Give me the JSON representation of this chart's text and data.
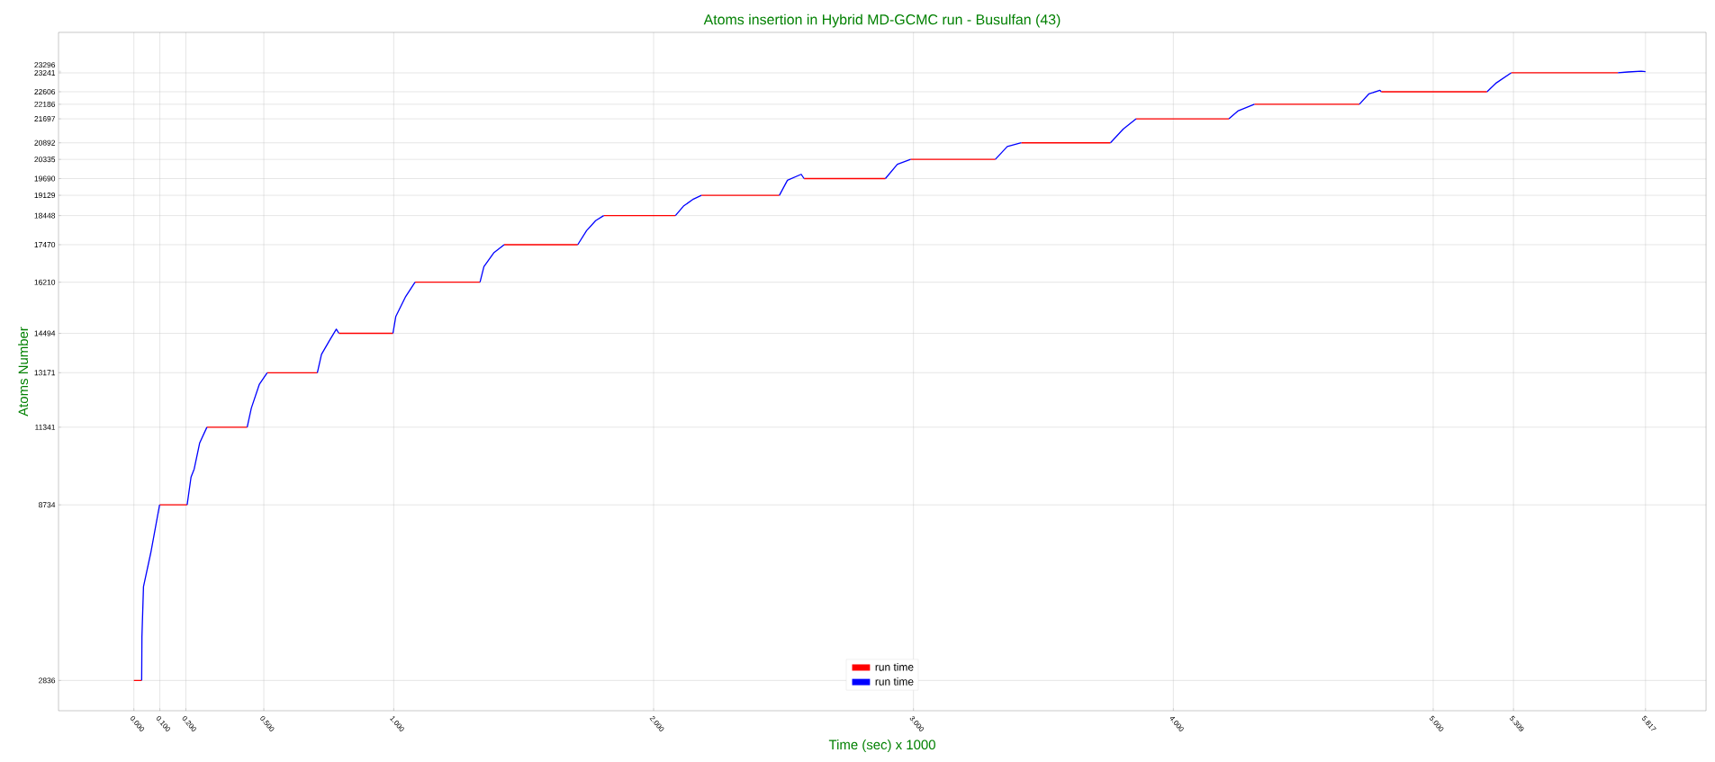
{
  "chart_data": {
    "type": "line",
    "title": "Atoms insertion in Hybrid MD-GCMC run - Busulfan (43)",
    "xlabel": "Time (sec) x 1000",
    "ylabel": "Atoms Number",
    "xlim": [
      -0.29,
      6.05
    ],
    "ylim": [
      1820,
      24600
    ],
    "xticks": [
      {
        "value": 0,
        "label": "0.000"
      },
      {
        "value": 0.1,
        "label": "0.100"
      },
      {
        "value": 0.2,
        "label": "0.200"
      },
      {
        "value": 0.5,
        "label": "0.500"
      },
      {
        "value": 1,
        "label": "1.000"
      },
      {
        "value": 2,
        "label": "2.000"
      },
      {
        "value": 3,
        "label": "3.000"
      },
      {
        "value": 4,
        "label": "4.000"
      },
      {
        "value": 5,
        "label": "5.000"
      },
      {
        "value": 5.309,
        "label": "5.309"
      },
      {
        "value": 5.817,
        "label": "5.817"
      }
    ],
    "yticks": [
      2836,
      8734,
      11341,
      13171,
      14494,
      16210,
      17470,
      18448,
      19129,
      19690,
      20335,
      20892,
      21697,
      22186,
      22606,
      23241,
      23296
    ],
    "grid": true,
    "legend": "bottom",
    "line_style": "solid",
    "series": [
      {
        "name": "run time",
        "color": "#ff0000",
        "x": [
          0,
          0.03,
          null,
          0.099,
          0.205,
          null,
          0.281,
          0.436,
          null,
          0.513,
          0.706,
          null,
          0.789,
          0.997,
          null,
          1.082,
          1.332,
          null,
          1.425,
          1.708,
          null,
          1.808,
          2.084,
          null,
          2.184,
          2.484,
          null,
          2.579,
          2.892,
          null,
          2.989,
          3.315,
          null,
          3.415,
          3.758,
          null,
          3.857,
          4.214,
          null,
          4.312,
          4.716,
          null,
          4.8,
          5.207,
          null,
          5.3,
          5.711
        ],
        "values": [
          2836,
          2836,
          null,
          8734,
          8734,
          null,
          11341,
          11341,
          null,
          13171,
          13171,
          null,
          14494,
          14494,
          null,
          16210,
          16210,
          null,
          17470,
          17470,
          null,
          18448,
          18448,
          null,
          19129,
          19129,
          null,
          19690,
          19690,
          null,
          20335,
          20335,
          null,
          20892,
          20892,
          null,
          21697,
          21697,
          null,
          22186,
          22186,
          null,
          22606,
          22606,
          null,
          23241,
          23241
        ]
      },
      {
        "name": "run time",
        "color": "#0000ff",
        "x": [
          0.03,
          0.031,
          0.037,
          0.065,
          0.099,
          null,
          0.205,
          0.22,
          0.232,
          0.253,
          0.281,
          null,
          0.436,
          0.452,
          0.483,
          0.513,
          null,
          0.706,
          0.722,
          0.753,
          0.779,
          0.789,
          null,
          0.997,
          1.008,
          1.046,
          1.082,
          null,
          1.332,
          1.347,
          1.386,
          1.425,
          null,
          1.708,
          1.742,
          1.777,
          1.808,
          null,
          2.084,
          2.115,
          2.153,
          2.184,
          null,
          2.484,
          2.515,
          2.568,
          2.579,
          null,
          2.892,
          2.938,
          2.989,
          null,
          3.315,
          3.361,
          3.415,
          null,
          3.758,
          3.807,
          3.857,
          null,
          4.214,
          4.248,
          4.312,
          null,
          4.716,
          4.752,
          4.795,
          4.8,
          null,
          5.207,
          5.243,
          5.3,
          null,
          5.711,
          5.75,
          5.8,
          5.817
        ],
        "values": [
          2836,
          4309,
          5985,
          7122,
          8734,
          null,
          8734,
          9667,
          9933,
          10805,
          11341,
          null,
          11341,
          11982,
          12786,
          13171,
          null,
          13171,
          13789,
          14258,
          14635,
          14494,
          null,
          14494,
          15062,
          15731,
          16210,
          null,
          16210,
          16734,
          17207,
          17470,
          null,
          17470,
          17942,
          18276,
          18448,
          null,
          18448,
          18766,
          19001,
          19129,
          null,
          19129,
          19634,
          19834,
          19690,
          null,
          19690,
          20168,
          20335,
          null,
          20335,
          20767,
          20892,
          null,
          20892,
          21351,
          21697,
          null,
          21697,
          21958,
          22186,
          null,
          22186,
          22531,
          22655,
          22606,
          null,
          22606,
          22905,
          23241,
          null,
          23241,
          23270,
          23296,
          23280
        ]
      }
    ]
  }
}
